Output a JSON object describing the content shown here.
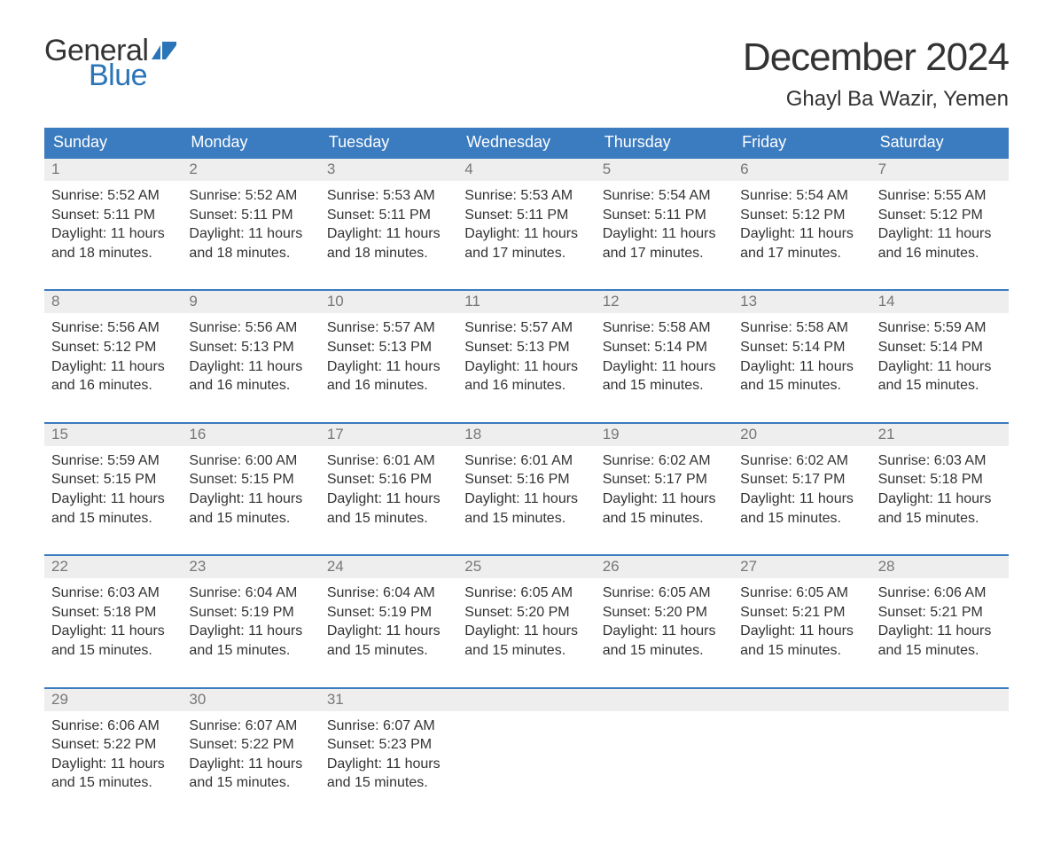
{
  "brand": {
    "general": "General",
    "blue": "Blue"
  },
  "title": "December 2024",
  "location": "Ghayl Ba Wazir, Yemen",
  "colors": {
    "accent": "#3b7bbf",
    "header_bg": "#3b7bbf",
    "daynum_bg": "#eeeeee",
    "text": "#333333",
    "muted": "#777777",
    "brand_blue": "#2a74b8",
    "background": "#ffffff"
  },
  "typography": {
    "title_fontsize": 44,
    "title_weight": 300,
    "location_fontsize": 24,
    "dayheader_fontsize": 18,
    "daynum_fontsize": 17,
    "body_fontsize": 16
  },
  "day_headers": [
    "Sunday",
    "Monday",
    "Tuesday",
    "Wednesday",
    "Thursday",
    "Friday",
    "Saturday"
  ],
  "weeks": [
    [
      {
        "num": "1",
        "sunrise": "Sunrise: 5:52 AM",
        "sunset": "Sunset: 5:11 PM",
        "daylight1": "Daylight: 11 hours",
        "daylight2": "and 18 minutes."
      },
      {
        "num": "2",
        "sunrise": "Sunrise: 5:52 AM",
        "sunset": "Sunset: 5:11 PM",
        "daylight1": "Daylight: 11 hours",
        "daylight2": "and 18 minutes."
      },
      {
        "num": "3",
        "sunrise": "Sunrise: 5:53 AM",
        "sunset": "Sunset: 5:11 PM",
        "daylight1": "Daylight: 11 hours",
        "daylight2": "and 18 minutes."
      },
      {
        "num": "4",
        "sunrise": "Sunrise: 5:53 AM",
        "sunset": "Sunset: 5:11 PM",
        "daylight1": "Daylight: 11 hours",
        "daylight2": "and 17 minutes."
      },
      {
        "num": "5",
        "sunrise": "Sunrise: 5:54 AM",
        "sunset": "Sunset: 5:11 PM",
        "daylight1": "Daylight: 11 hours",
        "daylight2": "and 17 minutes."
      },
      {
        "num": "6",
        "sunrise": "Sunrise: 5:54 AM",
        "sunset": "Sunset: 5:12 PM",
        "daylight1": "Daylight: 11 hours",
        "daylight2": "and 17 minutes."
      },
      {
        "num": "7",
        "sunrise": "Sunrise: 5:55 AM",
        "sunset": "Sunset: 5:12 PM",
        "daylight1": "Daylight: 11 hours",
        "daylight2": "and 16 minutes."
      }
    ],
    [
      {
        "num": "8",
        "sunrise": "Sunrise: 5:56 AM",
        "sunset": "Sunset: 5:12 PM",
        "daylight1": "Daylight: 11 hours",
        "daylight2": "and 16 minutes."
      },
      {
        "num": "9",
        "sunrise": "Sunrise: 5:56 AM",
        "sunset": "Sunset: 5:13 PM",
        "daylight1": "Daylight: 11 hours",
        "daylight2": "and 16 minutes."
      },
      {
        "num": "10",
        "sunrise": "Sunrise: 5:57 AM",
        "sunset": "Sunset: 5:13 PM",
        "daylight1": "Daylight: 11 hours",
        "daylight2": "and 16 minutes."
      },
      {
        "num": "11",
        "sunrise": "Sunrise: 5:57 AM",
        "sunset": "Sunset: 5:13 PM",
        "daylight1": "Daylight: 11 hours",
        "daylight2": "and 16 minutes."
      },
      {
        "num": "12",
        "sunrise": "Sunrise: 5:58 AM",
        "sunset": "Sunset: 5:14 PM",
        "daylight1": "Daylight: 11 hours",
        "daylight2": "and 15 minutes."
      },
      {
        "num": "13",
        "sunrise": "Sunrise: 5:58 AM",
        "sunset": "Sunset: 5:14 PM",
        "daylight1": "Daylight: 11 hours",
        "daylight2": "and 15 minutes."
      },
      {
        "num": "14",
        "sunrise": "Sunrise: 5:59 AM",
        "sunset": "Sunset: 5:14 PM",
        "daylight1": "Daylight: 11 hours",
        "daylight2": "and 15 minutes."
      }
    ],
    [
      {
        "num": "15",
        "sunrise": "Sunrise: 5:59 AM",
        "sunset": "Sunset: 5:15 PM",
        "daylight1": "Daylight: 11 hours",
        "daylight2": "and 15 minutes."
      },
      {
        "num": "16",
        "sunrise": "Sunrise: 6:00 AM",
        "sunset": "Sunset: 5:15 PM",
        "daylight1": "Daylight: 11 hours",
        "daylight2": "and 15 minutes."
      },
      {
        "num": "17",
        "sunrise": "Sunrise: 6:01 AM",
        "sunset": "Sunset: 5:16 PM",
        "daylight1": "Daylight: 11 hours",
        "daylight2": "and 15 minutes."
      },
      {
        "num": "18",
        "sunrise": "Sunrise: 6:01 AM",
        "sunset": "Sunset: 5:16 PM",
        "daylight1": "Daylight: 11 hours",
        "daylight2": "and 15 minutes."
      },
      {
        "num": "19",
        "sunrise": "Sunrise: 6:02 AM",
        "sunset": "Sunset: 5:17 PM",
        "daylight1": "Daylight: 11 hours",
        "daylight2": "and 15 minutes."
      },
      {
        "num": "20",
        "sunrise": "Sunrise: 6:02 AM",
        "sunset": "Sunset: 5:17 PM",
        "daylight1": "Daylight: 11 hours",
        "daylight2": "and 15 minutes."
      },
      {
        "num": "21",
        "sunrise": "Sunrise: 6:03 AM",
        "sunset": "Sunset: 5:18 PM",
        "daylight1": "Daylight: 11 hours",
        "daylight2": "and 15 minutes."
      }
    ],
    [
      {
        "num": "22",
        "sunrise": "Sunrise: 6:03 AM",
        "sunset": "Sunset: 5:18 PM",
        "daylight1": "Daylight: 11 hours",
        "daylight2": "and 15 minutes."
      },
      {
        "num": "23",
        "sunrise": "Sunrise: 6:04 AM",
        "sunset": "Sunset: 5:19 PM",
        "daylight1": "Daylight: 11 hours",
        "daylight2": "and 15 minutes."
      },
      {
        "num": "24",
        "sunrise": "Sunrise: 6:04 AM",
        "sunset": "Sunset: 5:19 PM",
        "daylight1": "Daylight: 11 hours",
        "daylight2": "and 15 minutes."
      },
      {
        "num": "25",
        "sunrise": "Sunrise: 6:05 AM",
        "sunset": "Sunset: 5:20 PM",
        "daylight1": "Daylight: 11 hours",
        "daylight2": "and 15 minutes."
      },
      {
        "num": "26",
        "sunrise": "Sunrise: 6:05 AM",
        "sunset": "Sunset: 5:20 PM",
        "daylight1": "Daylight: 11 hours",
        "daylight2": "and 15 minutes."
      },
      {
        "num": "27",
        "sunrise": "Sunrise: 6:05 AM",
        "sunset": "Sunset: 5:21 PM",
        "daylight1": "Daylight: 11 hours",
        "daylight2": "and 15 minutes."
      },
      {
        "num": "28",
        "sunrise": "Sunrise: 6:06 AM",
        "sunset": "Sunset: 5:21 PM",
        "daylight1": "Daylight: 11 hours",
        "daylight2": "and 15 minutes."
      }
    ],
    [
      {
        "num": "29",
        "sunrise": "Sunrise: 6:06 AM",
        "sunset": "Sunset: 5:22 PM",
        "daylight1": "Daylight: 11 hours",
        "daylight2": "and 15 minutes."
      },
      {
        "num": "30",
        "sunrise": "Sunrise: 6:07 AM",
        "sunset": "Sunset: 5:22 PM",
        "daylight1": "Daylight: 11 hours",
        "daylight2": "and 15 minutes."
      },
      {
        "num": "31",
        "sunrise": "Sunrise: 6:07 AM",
        "sunset": "Sunset: 5:23 PM",
        "daylight1": "Daylight: 11 hours",
        "daylight2": "and 15 minutes."
      },
      {
        "empty": true
      },
      {
        "empty": true
      },
      {
        "empty": true
      },
      {
        "empty": true
      }
    ]
  ]
}
